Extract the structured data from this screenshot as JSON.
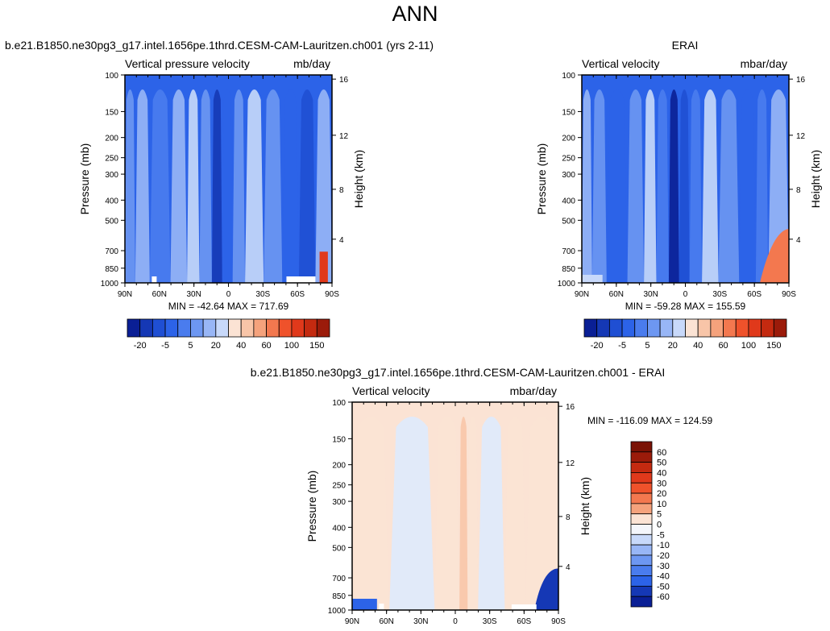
{
  "page": {
    "title": "ANN"
  },
  "colors": {
    "blues": [
      "#0a1f95",
      "#1538b5",
      "#1f4fd3",
      "#2c63e8",
      "#4a7cee",
      "#6d97f2",
      "#98b6f6",
      "#c8d9fa",
      "#deeafd"
    ],
    "whiteBand": "#f4f6fb",
    "reds": [
      "#fbe3d4",
      "#f8c5a8",
      "#f5a27c",
      "#f3784f",
      "#ef522b",
      "#e0391b",
      "#c42a10",
      "#9b1b0a",
      "#7a1205"
    ]
  },
  "chart_data": [
    {
      "type": "heatmap",
      "title": "b.e21.B1850.ne30pg3_g17.intel.1656pe.1thrd.CESM-CAM-Lauritzen.ch001 (yrs 2-11)",
      "left_label": "Vertical pressure velocity",
      "right_label": "mb/day",
      "xlabel": "",
      "ylabel": "Pressure (mb)",
      "y2label": "Height (km)",
      "x_ticks": [
        "90N",
        "60N",
        "30N",
        "0",
        "30S",
        "60S",
        "90S"
      ],
      "y_ticks": [
        "100",
        "150",
        "200",
        "250",
        "300",
        "400",
        "500",
        "700",
        "850",
        "1000"
      ],
      "y2_ticks": [
        "16",
        "12",
        "8",
        "4"
      ],
      "stats": "MIN = -42.64   MAX = 717.69",
      "y_scale": "log",
      "ylim": [
        100,
        1000
      ],
      "colorbar": {
        "orientation": "horizontal",
        "labels": [
          "-20",
          "-5",
          "5",
          "20",
          "40",
          "60",
          "100",
          "150"
        ]
      }
    },
    {
      "type": "heatmap",
      "title": "ERAI",
      "left_label": "Vertical velocity",
      "right_label": "mbar/day",
      "xlabel": "",
      "ylabel": "Pressure (mb)",
      "y2label": "Height (km)",
      "x_ticks": [
        "90N",
        "60N",
        "30N",
        "0",
        "30S",
        "60S",
        "90S"
      ],
      "y_ticks": [
        "100",
        "150",
        "200",
        "250",
        "300",
        "400",
        "500",
        "700",
        "850",
        "1000"
      ],
      "y2_ticks": [
        "16",
        "12",
        "8",
        "4"
      ],
      "stats": "MIN = -59.28   MAX = 155.59",
      "y_scale": "log",
      "ylim": [
        100,
        1000
      ],
      "colorbar": {
        "orientation": "horizontal",
        "labels": [
          "-20",
          "-5",
          "5",
          "20",
          "40",
          "60",
          "100",
          "150"
        ]
      }
    },
    {
      "type": "heatmap",
      "title": "b.e21.B1850.ne30pg3_g17.intel.1656pe.1thrd.CESM-CAM-Lauritzen.ch001 - ERAI",
      "left_label": "Vertical velocity",
      "right_label": "mbar/day",
      "xlabel": "",
      "ylabel": "Pressure (mb)",
      "y2label": "Height (km)",
      "x_ticks": [
        "90N",
        "60N",
        "30N",
        "0",
        "30S",
        "60S",
        "90S"
      ],
      "y_ticks": [
        "100",
        "150",
        "200",
        "250",
        "300",
        "400",
        "500",
        "700",
        "850",
        "1000"
      ],
      "y2_ticks": [
        "16",
        "12",
        "8",
        "4"
      ],
      "stats": "MIN = -116.09   MAX = 124.59",
      "y_scale": "log",
      "ylim": [
        100,
        1000
      ],
      "colorbar": {
        "orientation": "vertical",
        "labels": [
          "60",
          "50",
          "40",
          "30",
          "20",
          "10",
          "5",
          "0",
          "-5",
          "-10",
          "-20",
          "-30",
          "-40",
          "-50",
          "-60"
        ]
      }
    }
  ]
}
